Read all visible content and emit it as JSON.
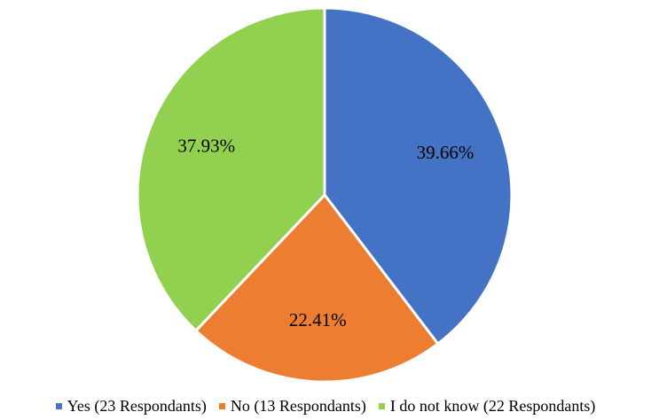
{
  "chart_data": {
    "type": "pie",
    "title": "",
    "legend_position": "bottom",
    "slices": [
      {
        "name": "Yes (23 Respondants)",
        "value": 23,
        "percent_label": "39.66%",
        "color": "#4472C4"
      },
      {
        "name": "No (13 Respondants)",
        "value": 13,
        "percent_label": "22.41%",
        "color": "#ED7D31"
      },
      {
        "name": "I do not know (22 Respondants)",
        "value": 22,
        "percent_label": "37.93%",
        "color": "#92D050"
      }
    ]
  }
}
